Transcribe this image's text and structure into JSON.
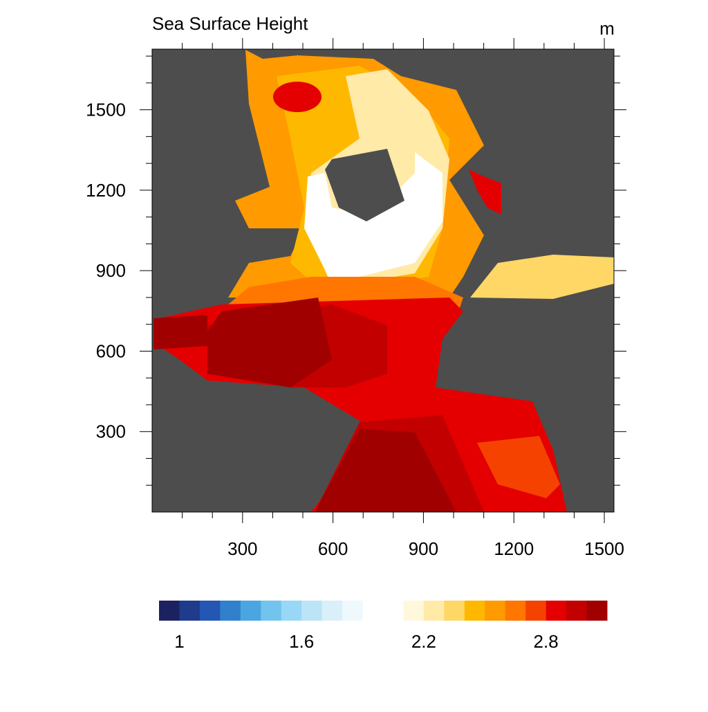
{
  "chart_data": {
    "type": "contour-map",
    "title": "Sea Surface Height",
    "units": "m",
    "xlim": [
      0,
      1532
    ],
    "xticks": [
      300,
      600,
      900,
      1200,
      1500
    ],
    "xminor": [
      100,
      200,
      400,
      500,
      700,
      800,
      1000,
      1100,
      1300,
      1400
    ],
    "ylim": [
      0,
      1726
    ],
    "yticks": [
      300,
      600,
      900,
      1200,
      1500
    ],
    "yminor": [
      100,
      200,
      400,
      500,
      700,
      800,
      1000,
      1100,
      1300,
      1400,
      1600,
      1700
    ],
    "land_color": "#4d4d4d",
    "colorbar": {
      "range": [
        0.9,
        3.1
      ],
      "ticks": [
        1,
        1.6,
        2.2,
        2.8
      ],
      "colors": [
        "#1c2260",
        "#1f3b8c",
        "#2456b4",
        "#3180cb",
        "#4aa6e0",
        "#72c3ee",
        "#98d8f6",
        "#bce4f7",
        "#d9f0fa",
        "#eff9fd",
        "#ffffff",
        "#ffffff",
        "#fff8dc",
        "#ffeaa8",
        "#ffd767",
        "#ffb800",
        "#ff9a00",
        "#ff7600",
        "#f64200",
        "#e40000",
        "#c20000",
        "#a10000"
      ]
    }
  }
}
